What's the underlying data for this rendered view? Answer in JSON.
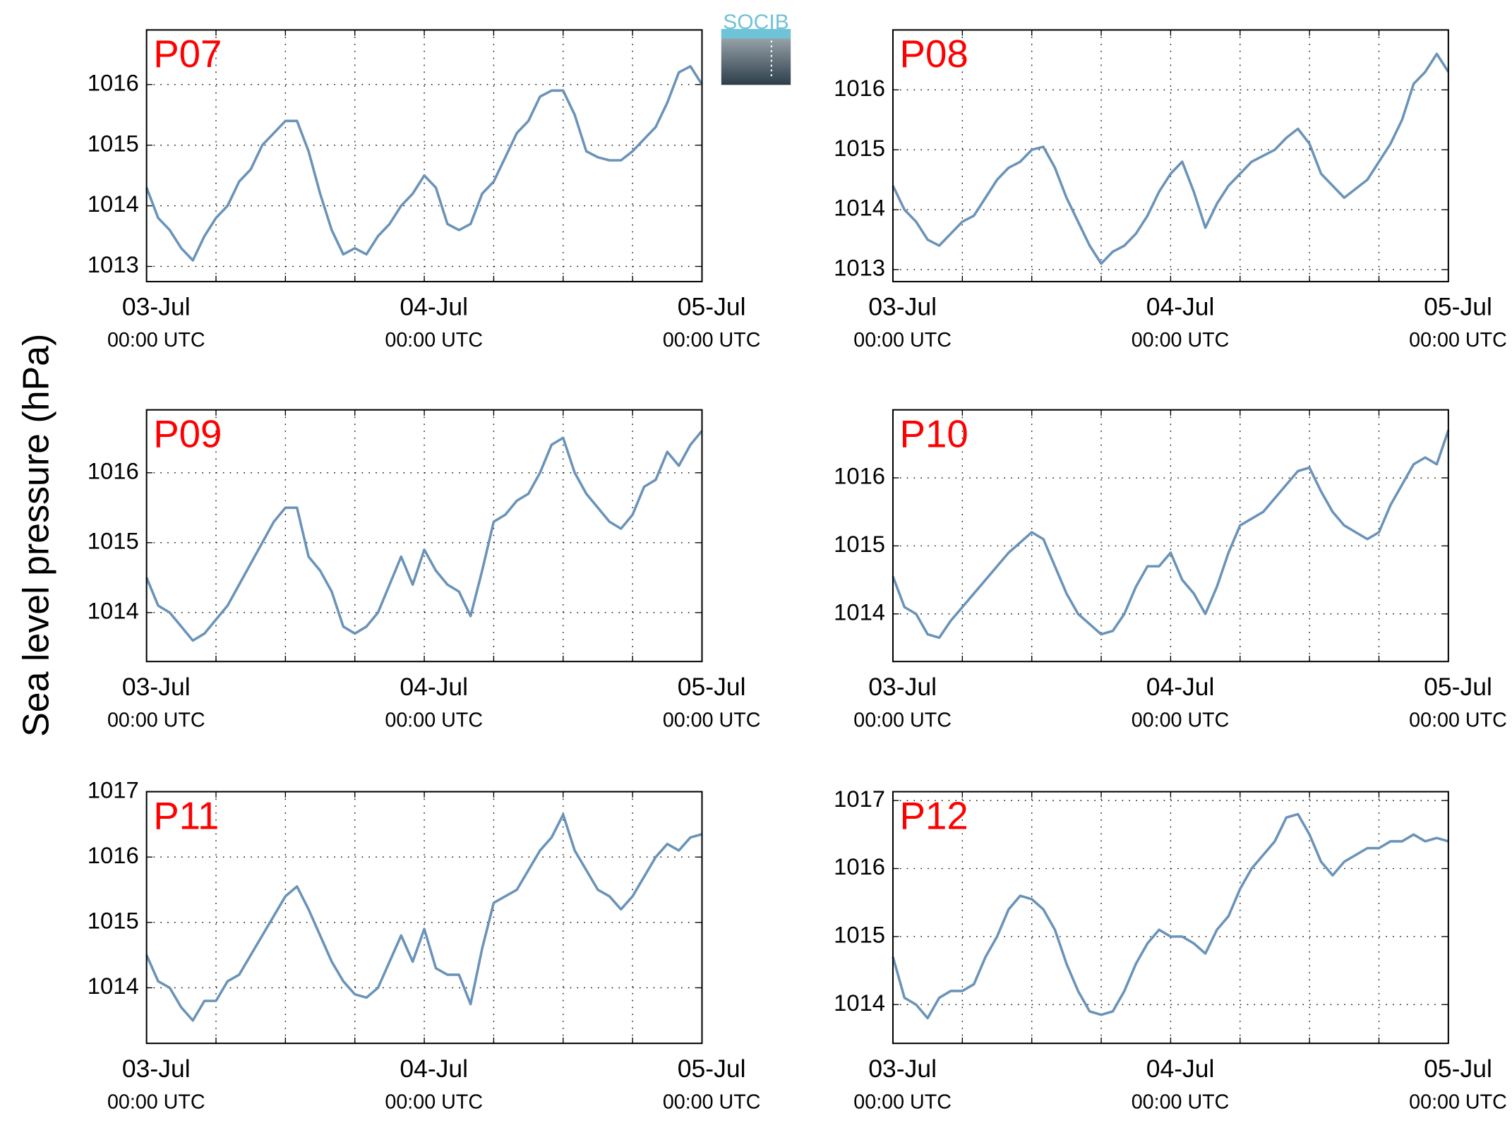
{
  "ylabel": "Sea level pressure (hPa)",
  "logo": "SOCIB",
  "chart_data": [
    {
      "type": "line",
      "title": "P07",
      "color": "#6a93b8",
      "title_color": "#ff0000",
      "grid": true,
      "x": [
        0,
        1,
        2,
        3,
        4,
        5,
        6,
        7,
        8,
        9,
        10,
        11,
        12,
        13,
        14,
        15,
        16,
        17,
        18,
        19,
        20,
        21,
        22,
        23,
        24,
        25,
        26,
        27,
        28,
        29,
        30,
        31,
        32,
        33,
        34,
        35,
        36,
        37,
        38,
        39,
        40,
        41,
        42,
        43,
        44,
        45,
        46,
        47,
        48
      ],
      "values": [
        1014.3,
        1013.8,
        1013.6,
        1013.3,
        1013.1,
        1013.5,
        1013.8,
        1014.0,
        1014.4,
        1014.6,
        1015.0,
        1015.2,
        1015.4,
        1015.4,
        1014.9,
        1014.2,
        1013.6,
        1013.2,
        1013.3,
        1013.2,
        1013.5,
        1013.7,
        1014.0,
        1014.2,
        1014.5,
        1014.3,
        1013.7,
        1013.6,
        1013.7,
        1014.2,
        1014.4,
        1014.8,
        1015.2,
        1015.4,
        1015.8,
        1015.9,
        1015.9,
        1015.5,
        1014.9,
        1014.8,
        1014.75,
        1014.75,
        1014.9,
        1015.1,
        1015.3,
        1015.7,
        1016.2,
        1016.3,
        1016.0
      ],
      "xlim": [
        0,
        48
      ],
      "ylim": [
        1012.75,
        1016.9
      ],
      "yticks": [
        1013,
        1014,
        1015,
        1016
      ],
      "xticks": [
        {
          "value": 0,
          "label": "03-Jul",
          "sublabel": "00:00 UTC"
        },
        {
          "value": 6,
          "label": null
        },
        {
          "value": 12,
          "label": null
        },
        {
          "value": 18,
          "label": null
        },
        {
          "value": 24,
          "label": "04-Jul",
          "sublabel": "00:00 UTC"
        },
        {
          "value": 30,
          "label": null
        },
        {
          "value": 36,
          "label": null
        },
        {
          "value": 42,
          "label": null
        },
        {
          "value": 48,
          "label": "05-Jul",
          "sublabel": "00:00 UTC"
        }
      ]
    },
    {
      "type": "line",
      "title": "P08",
      "color": "#6a93b8",
      "title_color": "#ff0000",
      "grid": true,
      "x": [
        0,
        1,
        2,
        3,
        4,
        5,
        6,
        7,
        8,
        9,
        10,
        11,
        12,
        13,
        14,
        15,
        16,
        17,
        18,
        19,
        20,
        21,
        22,
        23,
        24,
        25,
        26,
        27,
        28,
        29,
        30,
        31,
        32,
        33,
        34,
        35,
        36,
        37,
        38,
        39,
        40,
        41,
        42,
        43,
        44,
        45,
        46,
        47,
        48
      ],
      "values": [
        1014.4,
        1014.0,
        1013.8,
        1013.5,
        1013.4,
        1013.6,
        1013.8,
        1013.9,
        1014.2,
        1014.5,
        1014.7,
        1014.8,
        1015.0,
        1015.05,
        1014.7,
        1014.2,
        1013.8,
        1013.4,
        1013.1,
        1013.3,
        1013.4,
        1013.6,
        1013.9,
        1014.3,
        1014.6,
        1014.8,
        1014.3,
        1013.7,
        1014.1,
        1014.4,
        1014.6,
        1014.8,
        1014.9,
        1015.0,
        1015.2,
        1015.35,
        1015.1,
        1014.6,
        1014.4,
        1014.2,
        1014.35,
        1014.5,
        1014.8,
        1015.1,
        1015.5,
        1016.1,
        1016.3,
        1016.6,
        1016.3
      ],
      "xlim": [
        0,
        48
      ],
      "ylim": [
        1012.8,
        1017.0
      ],
      "yticks": [
        1013,
        1014,
        1015,
        1016
      ],
      "xticks": [
        {
          "value": 0,
          "label": "03-Jul",
          "sublabel": "00:00 UTC"
        },
        {
          "value": 6,
          "label": null
        },
        {
          "value": 12,
          "label": null
        },
        {
          "value": 18,
          "label": null
        },
        {
          "value": 24,
          "label": "04-Jul",
          "sublabel": "00:00 UTC"
        },
        {
          "value": 30,
          "label": null
        },
        {
          "value": 36,
          "label": null
        },
        {
          "value": 42,
          "label": null
        },
        {
          "value": 48,
          "label": "05-Jul",
          "sublabel": "00:00 UTC"
        }
      ]
    },
    {
      "type": "line",
      "title": "P09",
      "color": "#6a93b8",
      "title_color": "#ff0000",
      "grid": true,
      "x": [
        0,
        1,
        2,
        3,
        4,
        5,
        6,
        7,
        8,
        9,
        10,
        11,
        12,
        13,
        14,
        15,
        16,
        17,
        18,
        19,
        20,
        21,
        22,
        23,
        24,
        25,
        26,
        27,
        28,
        29,
        30,
        31,
        32,
        33,
        34,
        35,
        36,
        37,
        38,
        39,
        40,
        41,
        42,
        43,
        44,
        45,
        46,
        47,
        48
      ],
      "values": [
        1014.5,
        1014.1,
        1014.0,
        1013.8,
        1013.6,
        1013.7,
        1013.9,
        1014.1,
        1014.4,
        1014.7,
        1015.0,
        1015.3,
        1015.5,
        1015.5,
        1014.8,
        1014.6,
        1014.3,
        1013.8,
        1013.7,
        1013.8,
        1014.0,
        1014.4,
        1014.8,
        1014.4,
        1014.9,
        1014.6,
        1014.4,
        1014.3,
        1013.95,
        1014.6,
        1015.3,
        1015.4,
        1015.6,
        1015.7,
        1016.0,
        1016.4,
        1016.5,
        1016.0,
        1015.7,
        1015.5,
        1015.3,
        1015.2,
        1015.4,
        1015.8,
        1015.9,
        1016.3,
        1016.1,
        1016.4,
        1016.6
      ],
      "xlim": [
        0,
        48
      ],
      "ylim": [
        1013.3,
        1016.9
      ],
      "yticks": [
        1014,
        1015,
        1016
      ],
      "xticks": [
        {
          "value": 0,
          "label": "03-Jul",
          "sublabel": "00:00 UTC"
        },
        {
          "value": 6,
          "label": null
        },
        {
          "value": 12,
          "label": null
        },
        {
          "value": 18,
          "label": null
        },
        {
          "value": 24,
          "label": "04-Jul",
          "sublabel": "00:00 UTC"
        },
        {
          "value": 30,
          "label": null
        },
        {
          "value": 36,
          "label": null
        },
        {
          "value": 42,
          "label": null
        },
        {
          "value": 48,
          "label": "05-Jul",
          "sublabel": "00:00 UTC"
        }
      ]
    },
    {
      "type": "line",
      "title": "P10",
      "color": "#6a93b8",
      "title_color": "#ff0000",
      "grid": true,
      "x": [
        0,
        1,
        2,
        3,
        4,
        5,
        6,
        7,
        8,
        9,
        10,
        11,
        12,
        13,
        14,
        15,
        16,
        17,
        18,
        19,
        20,
        21,
        22,
        23,
        24,
        25,
        26,
        27,
        28,
        29,
        30,
        31,
        32,
        33,
        34,
        35,
        36,
        37,
        38,
        39,
        40,
        41,
        42,
        43,
        44,
        45,
        46,
        47,
        48
      ],
      "values": [
        1014.55,
        1014.1,
        1014.0,
        1013.7,
        1013.65,
        1013.9,
        1014.1,
        1014.3,
        1014.5,
        1014.7,
        1014.9,
        1015.05,
        1015.2,
        1015.1,
        1014.7,
        1014.3,
        1014.0,
        1013.85,
        1013.7,
        1013.75,
        1014.0,
        1014.4,
        1014.7,
        1014.7,
        1014.9,
        1014.5,
        1014.3,
        1014.0,
        1014.4,
        1014.9,
        1015.3,
        1015.4,
        1015.5,
        1015.7,
        1015.9,
        1016.1,
        1016.15,
        1015.8,
        1015.5,
        1015.3,
        1015.2,
        1015.1,
        1015.2,
        1015.6,
        1015.9,
        1016.2,
        1016.3,
        1016.2,
        1016.7
      ],
      "xlim": [
        0,
        48
      ],
      "ylim": [
        1013.3,
        1017.0
      ],
      "yticks": [
        1014,
        1015,
        1016
      ],
      "xticks": [
        {
          "value": 0,
          "label": "03-Jul",
          "sublabel": "00:00 UTC"
        },
        {
          "value": 6,
          "label": null
        },
        {
          "value": 12,
          "label": null
        },
        {
          "value": 18,
          "label": null
        },
        {
          "value": 24,
          "label": "04-Jul",
          "sublabel": "00:00 UTC"
        },
        {
          "value": 30,
          "label": null
        },
        {
          "value": 36,
          "label": null
        },
        {
          "value": 42,
          "label": null
        },
        {
          "value": 48,
          "label": "05-Jul",
          "sublabel": "00:00 UTC"
        }
      ]
    },
    {
      "type": "line",
      "title": "P11",
      "color": "#6a93b8",
      "title_color": "#ff0000",
      "grid": true,
      "x": [
        0,
        1,
        2,
        3,
        4,
        5,
        6,
        7,
        8,
        9,
        10,
        11,
        12,
        13,
        14,
        15,
        16,
        17,
        18,
        19,
        20,
        21,
        22,
        23,
        24,
        25,
        26,
        27,
        28,
        29,
        30,
        31,
        32,
        33,
        34,
        35,
        36,
        37,
        38,
        39,
        40,
        41,
        42,
        43,
        44,
        45,
        46,
        47,
        48
      ],
      "values": [
        1014.5,
        1014.1,
        1014.0,
        1013.7,
        1013.5,
        1013.8,
        1013.8,
        1014.1,
        1014.2,
        1014.5,
        1014.8,
        1015.1,
        1015.4,
        1015.55,
        1015.2,
        1014.8,
        1014.4,
        1014.1,
        1013.9,
        1013.85,
        1014.0,
        1014.4,
        1014.8,
        1014.4,
        1014.9,
        1014.3,
        1014.2,
        1014.2,
        1013.75,
        1014.6,
        1015.3,
        1015.4,
        1015.5,
        1015.8,
        1016.1,
        1016.3,
        1016.65,
        1016.1,
        1015.8,
        1015.5,
        1015.4,
        1015.2,
        1015.4,
        1015.7,
        1016.0,
        1016.2,
        1016.1,
        1016.3,
        1016.35
      ],
      "xlim": [
        0,
        48
      ],
      "ylim": [
        1013.15,
        1017.0
      ],
      "yticks": [
        1014,
        1015,
        1016,
        1017
      ],
      "xticks": [
        {
          "value": 0,
          "label": "03-Jul",
          "sublabel": "00:00 UTC"
        },
        {
          "value": 6,
          "label": null
        },
        {
          "value": 12,
          "label": null
        },
        {
          "value": 18,
          "label": null
        },
        {
          "value": 24,
          "label": "04-Jul",
          "sublabel": "00:00 UTC"
        },
        {
          "value": 30,
          "label": null
        },
        {
          "value": 36,
          "label": null
        },
        {
          "value": 42,
          "label": null
        },
        {
          "value": 48,
          "label": "05-Jul",
          "sublabel": "00:00 UTC"
        }
      ]
    },
    {
      "type": "line",
      "title": "P12",
      "color": "#6a93b8",
      "title_color": "#ff0000",
      "grid": true,
      "x": [
        0,
        1,
        2,
        3,
        4,
        5,
        6,
        7,
        8,
        9,
        10,
        11,
        12,
        13,
        14,
        15,
        16,
        17,
        18,
        19,
        20,
        21,
        22,
        23,
        24,
        25,
        26,
        27,
        28,
        29,
        30,
        31,
        32,
        33,
        34,
        35,
        36,
        37,
        38,
        39,
        40,
        41,
        42,
        43,
        44,
        45,
        46,
        47,
        48
      ],
      "values": [
        1014.7,
        1014.1,
        1014.0,
        1013.8,
        1014.1,
        1014.2,
        1014.2,
        1014.3,
        1014.7,
        1015.0,
        1015.4,
        1015.6,
        1015.55,
        1015.4,
        1015.1,
        1014.6,
        1014.2,
        1013.9,
        1013.85,
        1013.9,
        1014.2,
        1014.6,
        1014.9,
        1015.1,
        1015.0,
        1015.0,
        1014.9,
        1014.75,
        1015.1,
        1015.3,
        1015.7,
        1016.0,
        1016.2,
        1016.4,
        1016.75,
        1016.8,
        1016.5,
        1016.1,
        1015.9,
        1016.1,
        1016.2,
        1016.3,
        1016.3,
        1016.4,
        1016.4,
        1016.5,
        1016.4,
        1016.45,
        1016.4
      ],
      "xlim": [
        0,
        48
      ],
      "ylim": [
        1013.43,
        1017.13
      ],
      "yticks": [
        1014,
        1015,
        1016,
        1017
      ],
      "xticks": [
        {
          "value": 0,
          "label": "03-Jul",
          "sublabel": "00:00 UTC"
        },
        {
          "value": 6,
          "label": null
        },
        {
          "value": 12,
          "label": null
        },
        {
          "value": 18,
          "label": null
        },
        {
          "value": 24,
          "label": "04-Jul",
          "sublabel": "00:00 UTC"
        },
        {
          "value": 30,
          "label": null
        },
        {
          "value": 36,
          "label": null
        },
        {
          "value": 42,
          "label": null
        },
        {
          "value": 48,
          "label": "05-Jul",
          "sublabel": "00:00 UTC"
        }
      ]
    }
  ]
}
